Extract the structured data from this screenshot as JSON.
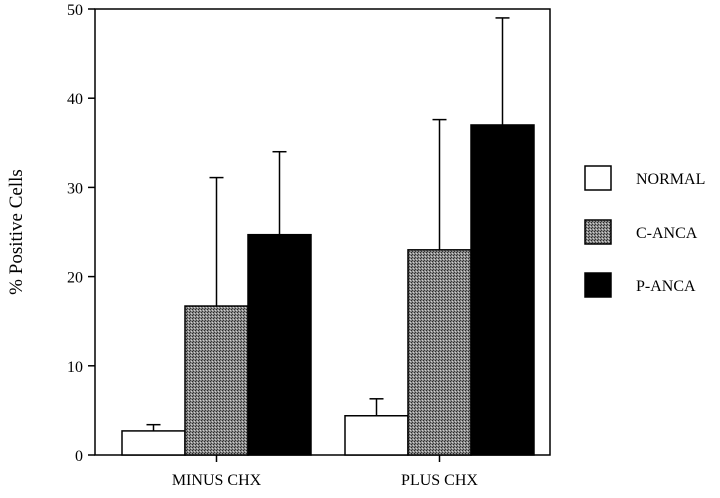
{
  "chart_data": {
    "type": "bar",
    "title": "",
    "xlabel": "",
    "ylabel": "% Positive Cells",
    "ylim": [
      0,
      50
    ],
    "yticks": [
      0,
      10,
      20,
      30,
      40,
      50
    ],
    "categories": [
      "MINUS CHX",
      "PLUS CHX"
    ],
    "series": [
      {
        "name": "NORMAL",
        "values": [
          2.7,
          4.4
        ],
        "errors": [
          0.7,
          1.9
        ],
        "fill": "white"
      },
      {
        "name": "C-ANCA",
        "values": [
          16.7,
          23.0
        ],
        "errors": [
          14.4,
          14.6
        ],
        "fill": "stipple"
      },
      {
        "name": "P-ANCA",
        "values": [
          24.7,
          37.0
        ],
        "errors": [
          9.3,
          12.0
        ],
        "fill": "black"
      }
    ],
    "error_bars": "upper only",
    "grid": false,
    "legend_position": "right"
  }
}
